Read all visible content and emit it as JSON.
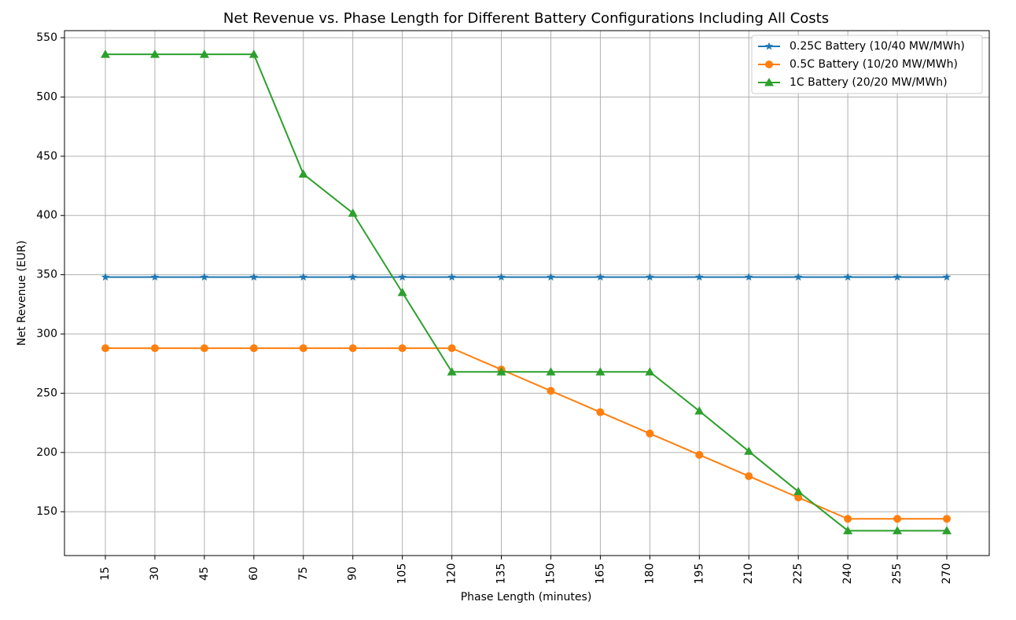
{
  "chart_data": {
    "type": "line",
    "title": "Net Revenue vs. Phase Length for Different Battery Configurations Including All Costs",
    "xlabel": "Phase Length (minutes)",
    "ylabel": "Net Revenue (EUR)",
    "x": [
      15,
      30,
      45,
      60,
      75,
      90,
      105,
      120,
      135,
      150,
      165,
      180,
      195,
      210,
      225,
      240,
      255,
      270
    ],
    "xtick_labels": [
      "15",
      "30",
      "45",
      "60",
      "75",
      "90",
      "105",
      "120",
      "135",
      "150",
      "165",
      "180",
      "195",
      "210",
      "225",
      "240",
      "255",
      "270"
    ],
    "yticks": [
      150,
      200,
      250,
      300,
      350,
      400,
      450,
      500,
      550
    ],
    "ytick_labels": [
      "150",
      "200",
      "250",
      "300",
      "350",
      "400",
      "450",
      "500",
      "550"
    ],
    "ylim": [
      113,
      556
    ],
    "grid": true,
    "legend_position": "top-right",
    "series": [
      {
        "name": "0.25C Battery (10/40 MW/MWh)",
        "color": "#1f77b4",
        "marker": "star",
        "values": [
          348,
          348,
          348,
          348,
          348,
          348,
          348,
          348,
          348,
          348,
          348,
          348,
          348,
          348,
          348,
          348,
          348,
          348
        ]
      },
      {
        "name": "0.5C Battery (10/20 MW/MWh)",
        "color": "#ff7f0e",
        "marker": "circle",
        "values": [
          288,
          288,
          288,
          288,
          288,
          288,
          288,
          288,
          270,
          252,
          234,
          216,
          198,
          180,
          162,
          144,
          144,
          144
        ]
      },
      {
        "name": "1C Battery (20/20 MW/MWh)",
        "color": "#2ca02c",
        "marker": "triangle",
        "values": [
          536,
          536,
          536,
          536,
          435,
          402,
          335,
          268,
          268,
          268,
          268,
          268,
          235,
          201,
          167,
          134,
          134,
          134
        ]
      }
    ]
  }
}
